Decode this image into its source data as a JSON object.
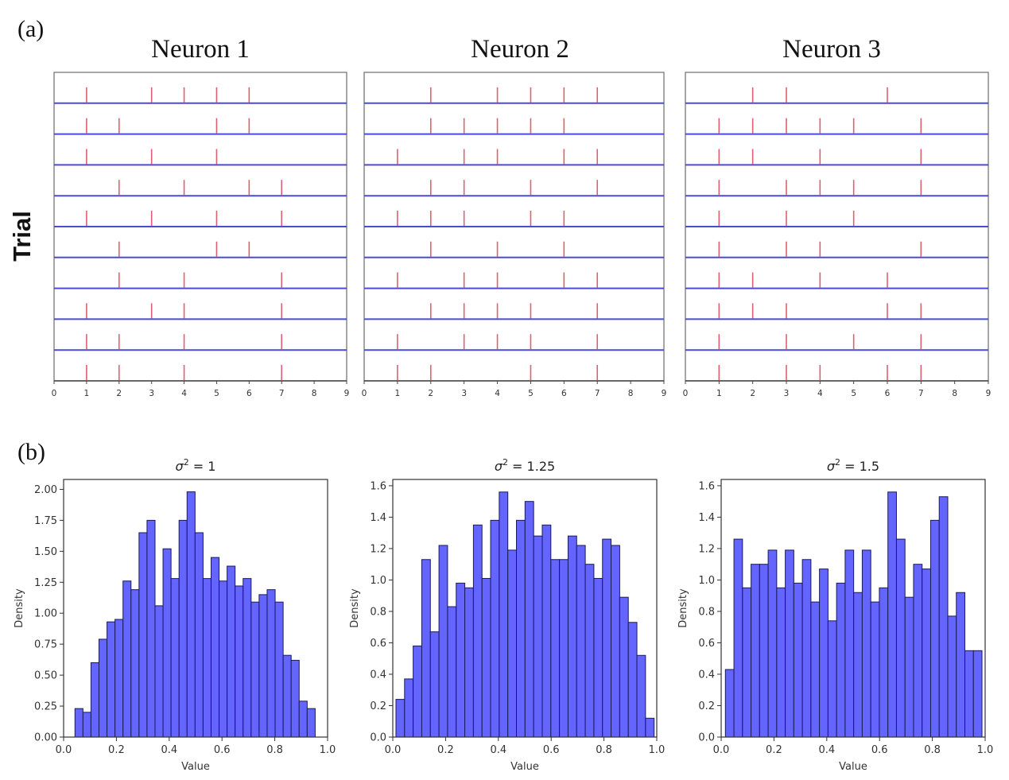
{
  "figure": {
    "panel_a_label": "(a)",
    "panel_b_label": "(b)",
    "raster_ylabel": "Trial"
  },
  "colors": {
    "spike": "#e06070",
    "baseline": "#4b4bd6",
    "bar_fill": "#6464ff",
    "bar_edge": "#1a1a5a",
    "axis": "#555555"
  },
  "chart_data": [
    {
      "type": "scatter",
      "subtype": "raster",
      "title": "Neuron 1",
      "ylabel": "Trial",
      "xlim": [
        0,
        9
      ],
      "xticks": [
        "0",
        "1",
        "2",
        "3",
        "4",
        "5",
        "6",
        "7",
        "8",
        "9"
      ],
      "trials": [
        [
          1,
          3,
          4,
          5,
          6
        ],
        [
          1,
          2,
          5,
          6
        ],
        [
          1,
          3,
          5
        ],
        [
          2,
          4,
          6,
          7
        ],
        [
          1,
          3,
          5,
          7
        ],
        [
          2,
          5,
          6
        ],
        [
          2,
          4,
          7
        ],
        [
          1,
          3,
          4,
          7
        ],
        [
          1,
          2,
          4,
          7
        ],
        [
          1,
          2,
          4,
          7
        ]
      ]
    },
    {
      "type": "scatter",
      "subtype": "raster",
      "title": "Neuron 2",
      "ylabel": "Trial",
      "xlim": [
        0,
        9
      ],
      "xticks": [
        "0",
        "1",
        "2",
        "3",
        "4",
        "5",
        "6",
        "7",
        "8",
        "9"
      ],
      "trials": [
        [
          2,
          4,
          5,
          6,
          7
        ],
        [
          2,
          3,
          4,
          5,
          6
        ],
        [
          1,
          3,
          4,
          6,
          7
        ],
        [
          2,
          3,
          5,
          7
        ],
        [
          1,
          2,
          3,
          5,
          6
        ],
        [
          2,
          4,
          6
        ],
        [
          1,
          3,
          4,
          6,
          7
        ],
        [
          2,
          3,
          4,
          5,
          7
        ],
        [
          1,
          3,
          4,
          5,
          7
        ],
        [
          1,
          2,
          5,
          7
        ]
      ]
    },
    {
      "type": "scatter",
      "subtype": "raster",
      "title": "Neuron 3",
      "ylabel": "Trial",
      "xlim": [
        0,
        9
      ],
      "xticks": [
        "0",
        "1",
        "2",
        "3",
        "4",
        "5",
        "6",
        "7",
        "8",
        "9"
      ],
      "trials": [
        [
          2,
          3,
          6
        ],
        [
          1,
          2,
          3,
          4,
          5,
          7
        ],
        [
          1,
          2,
          4,
          7
        ],
        [
          1,
          3,
          4,
          5,
          7
        ],
        [
          1,
          3,
          5
        ],
        [
          1,
          3,
          4,
          7
        ],
        [
          1,
          2,
          4,
          6
        ],
        [
          1,
          2,
          3,
          6,
          7
        ],
        [
          1,
          3,
          5,
          7
        ],
        [
          1,
          3,
          4,
          6,
          7
        ]
      ]
    },
    {
      "type": "bar",
      "subtype": "histogram",
      "title": "σ² = 1",
      "title_main": "σ",
      "title_sup": "2",
      "title_rest": " = 1",
      "xlabel": "Value",
      "ylabel": "Density",
      "xlim": [
        0,
        1
      ],
      "ylim": [
        0,
        2.08
      ],
      "xticks": [
        "0.0",
        "0.2",
        "0.4",
        "0.6",
        "0.8",
        "1.0"
      ],
      "yticks": [
        "0.00",
        "0.25",
        "0.50",
        "0.75",
        "1.00",
        "1.25",
        "1.50",
        "1.75",
        "2.00"
      ],
      "bin_start": 0.043,
      "bin_end": 0.953,
      "values": [
        0.23,
        0.2,
        0.6,
        0.79,
        0.93,
        0.95,
        1.26,
        1.19,
        1.65,
        1.75,
        1.06,
        1.52,
        1.28,
        1.75,
        1.98,
        1.65,
        1.28,
        1.45,
        1.26,
        1.38,
        1.22,
        1.28,
        1.09,
        1.15,
        1.19,
        1.09,
        0.66,
        0.62,
        0.29,
        0.23
      ]
    },
    {
      "type": "bar",
      "subtype": "histogram",
      "title": "σ² = 1.25",
      "title_main": "σ",
      "title_sup": "2",
      "title_rest": " = 1.25",
      "xlabel": "Value",
      "ylabel": "Density",
      "xlim": [
        0,
        1
      ],
      "ylim": [
        0,
        1.64
      ],
      "xticks": [
        "0.0",
        "0.2",
        "0.4",
        "0.6",
        "0.8",
        "1.0"
      ],
      "yticks": [
        "0.0",
        "0.2",
        "0.4",
        "0.6",
        "0.8",
        "1.0",
        "1.2",
        "1.4",
        "1.6"
      ],
      "bin_start": 0.012,
      "bin_end": 0.99,
      "values": [
        0.24,
        0.37,
        0.58,
        1.13,
        0.67,
        1.22,
        0.83,
        0.98,
        0.95,
        1.35,
        1.01,
        1.38,
        1.56,
        1.19,
        1.38,
        1.5,
        1.28,
        1.35,
        1.13,
        1.13,
        1.28,
        1.22,
        1.1,
        1.01,
        1.26,
        1.22,
        0.89,
        0.73,
        0.52,
        0.12
      ]
    },
    {
      "type": "bar",
      "subtype": "histogram",
      "title": "σ² = 1.5",
      "title_main": "σ",
      "title_sup": "2",
      "title_rest": " = 1.5",
      "xlabel": "Value",
      "ylabel": "Density",
      "xlim": [
        0,
        1
      ],
      "ylim": [
        0,
        1.64
      ],
      "xticks": [
        "0.0",
        "0.2",
        "0.4",
        "0.6",
        "0.8",
        "1.0"
      ],
      "yticks": [
        "0.0",
        "0.2",
        "0.4",
        "0.6",
        "0.8",
        "1.0",
        "1.2",
        "1.4",
        "1.6"
      ],
      "bin_start": 0.016,
      "bin_end": 0.988,
      "values": [
        0.43,
        1.26,
        0.95,
        1.1,
        1.1,
        1.19,
        0.95,
        1.19,
        0.98,
        1.13,
        0.86,
        1.07,
        0.74,
        0.98,
        1.19,
        0.92,
        1.19,
        0.86,
        0.95,
        1.56,
        1.26,
        0.89,
        1.1,
        1.07,
        1.38,
        1.53,
        0.77,
        0.92,
        0.55,
        0.55
      ]
    }
  ]
}
